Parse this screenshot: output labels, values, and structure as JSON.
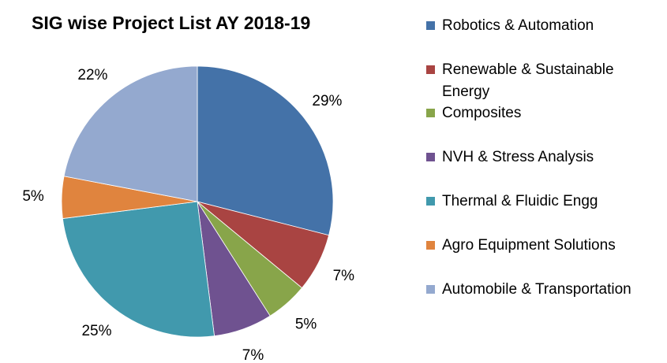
{
  "chart_data": {
    "type": "pie",
    "title": "SIG wise Project List AY 2018-19",
    "legend_position": "right",
    "slices": [
      {
        "name": "Robotics & Automation",
        "value": 29,
        "label": "29%",
        "color": "#4472a8"
      },
      {
        "name": "Renewable & Sustainable Energy",
        "value": 7,
        "label": "7%",
        "color": "#a94442"
      },
      {
        "name": "Composites",
        "value": 5,
        "label": "5%",
        "color": "#88a54a"
      },
      {
        "name": "NVH & Stress Analysis",
        "value": 7,
        "label": "7%",
        "color": "#6f5290"
      },
      {
        "name": "Thermal & Fluidic Engg",
        "value": 25,
        "label": "25%",
        "color": "#4199ad"
      },
      {
        "name": "Agro Equipment Solutions",
        "value": 5,
        "label": "5%",
        "color": "#e0843e"
      },
      {
        "name": "Automobile & Transportation",
        "value": 22,
        "label": "22%",
        "color": "#94a9cf"
      }
    ]
  }
}
